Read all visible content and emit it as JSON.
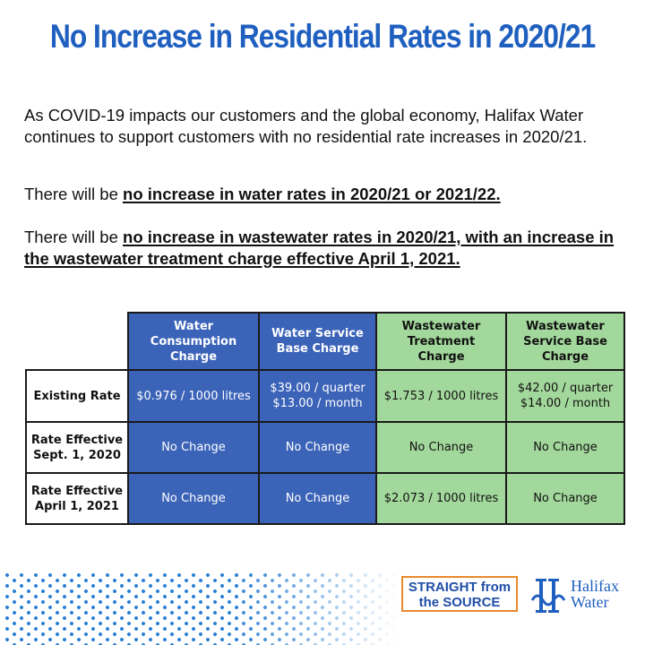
{
  "title": "No Increase in Residential Rates in 2020/21",
  "intro": {
    "p1": "As COVID-19 impacts our customers and the global economy, Halifax Water continues to support customers with no residential rate increases in 2020/21.",
    "p2_prefix": "There will be ",
    "p2_bold": "no increase in water rates in 2020/21 or 2021/22.",
    "p3_prefix": "There will be ",
    "p3_bold": "no increase in wastewater rates in 2020/21, with an increase in the wastewater treatment charge effective April 1, 2021."
  },
  "table": {
    "headers": [
      "Water Consumption Charge",
      "Water Service Base Charge",
      "Wastewater Treatment Charge",
      "Wastewater Service Base Charge"
    ],
    "rows": [
      {
        "label": "Existing Rate",
        "cells": [
          "$0.976 / 1000 litres",
          "$39.00 / quarter $13.00 / month",
          "$1.753 / 1000 litres",
          "$42.00 / quarter $14.00 / month"
        ]
      },
      {
        "label": "Rate Effective Sept. 1, 2020",
        "cells": [
          "No Change",
          "No Change",
          "No Change",
          "No Change"
        ]
      },
      {
        "label": "Rate Effective April 1, 2021",
        "cells": [
          "No Change",
          "No Change",
          "$2.073 / 1000 litres",
          "No Change"
        ]
      }
    ]
  },
  "footer": {
    "badge_line1": "STRAIGHT from",
    "badge_line2": "the SOURCE",
    "logo_line1": "Halifax",
    "logo_line2": "Water"
  },
  "colors": {
    "title_blue": "#1f5fbf",
    "water_blue": "#3b63b8",
    "wastewater_green": "#a3d89c",
    "badge_orange": "#e8892c",
    "dot_blue": "#2a7fd4"
  }
}
